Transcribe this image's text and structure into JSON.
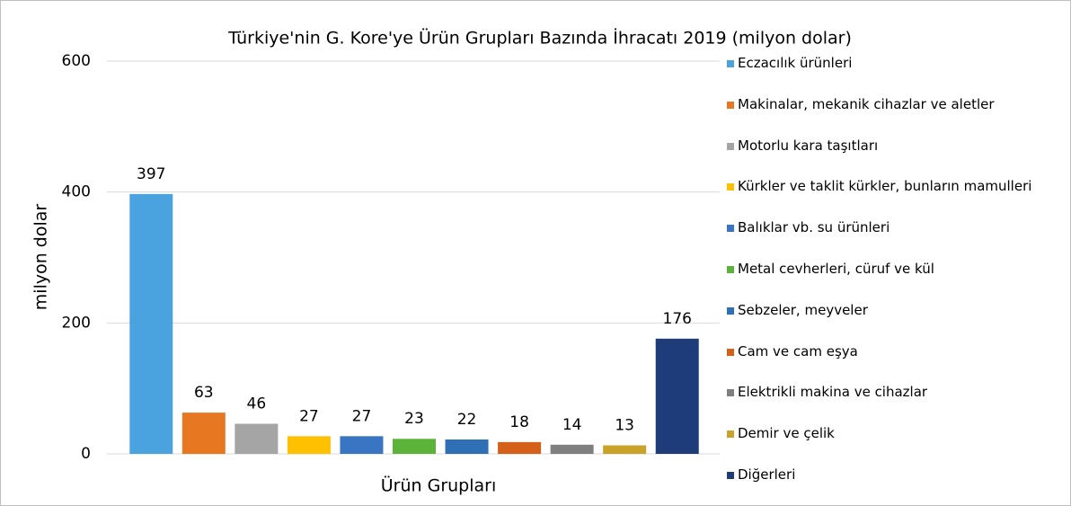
{
  "chart_data": {
    "type": "bar",
    "title": "Türkiye'nin G. Kore'ye  Ürün Grupları Bazında İhracatı 2019 (milyon dolar)",
    "x_label": "Ürün Grupları",
    "y_label": "milyon dolar",
    "categories": [
      "Eczacılık ürünleri",
      "Makinalar, mekanik cihazlar ve aletler",
      "Motorlu kara taşıtları",
      "Kürkler ve taklit kürkler, bunların mamulleri",
      "Balıklar vb. su ürünleri",
      "Metal cevherleri, cüruf ve kül",
      "Sebzeler, meyveler",
      "Cam ve cam eşya",
      "Elektrikli makina ve cihazlar",
      "Demir ve çelik",
      "Diğerleri"
    ],
    "values": [
      397,
      63,
      46,
      27,
      27,
      23,
      22,
      18,
      14,
      13,
      176
    ],
    "colors": [
      "#4aa3df",
      "#e87722",
      "#a5a5a5",
      "#ffc000",
      "#3a75c4",
      "#5cb33a",
      "#2e6fb5",
      "#d4601a",
      "#7f7f7f",
      "#c9a227",
      "#1f3c7a"
    ],
    "ylim": [
      0,
      600
    ],
    "yticks": [
      0,
      200,
      400,
      600
    ],
    "grid": true,
    "legend": "right"
  }
}
